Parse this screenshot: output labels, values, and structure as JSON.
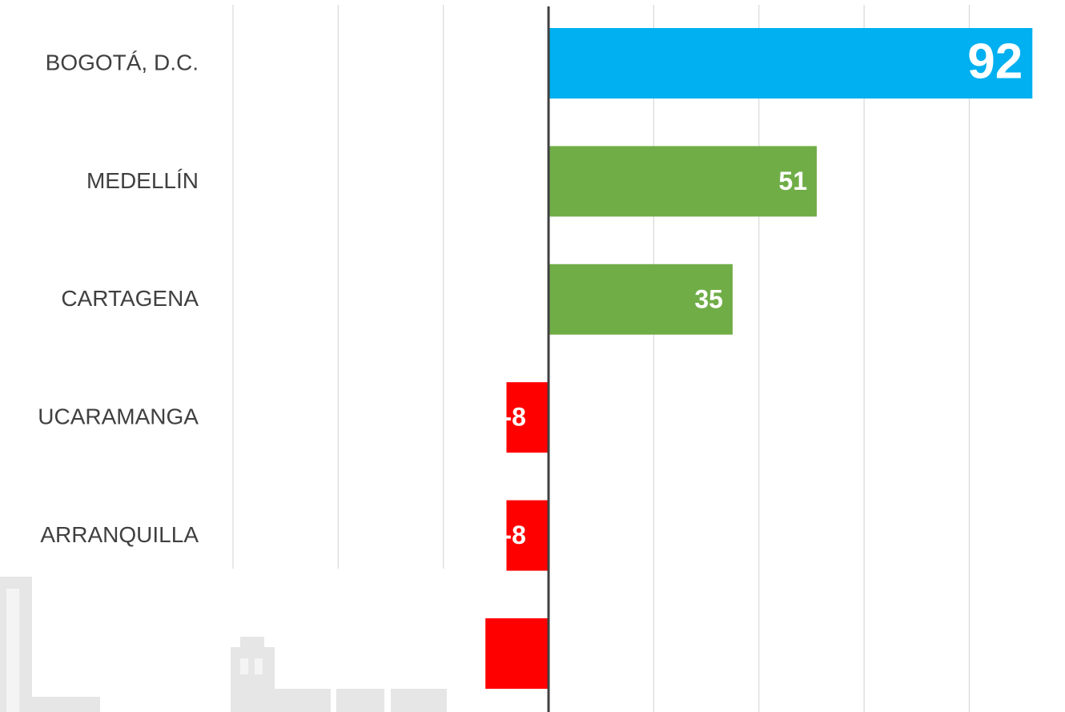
{
  "chart_data": {
    "type": "barh",
    "categories": [
      "BOGOTÁ, D.C.",
      "MEDELLÍN",
      "CARTAGENA",
      "UCARAMANGA",
      "ARRANQUILLA",
      null
    ],
    "values": [
      92,
      51,
      35,
      -8,
      -8,
      -12
    ],
    "colors": [
      "#00b0f0",
      "#70ad47",
      "#70ad47",
      "#ff0000",
      "#ff0000",
      "#ff0000"
    ],
    "data_labels": [
      true,
      true,
      true,
      true,
      true,
      false
    ],
    "xlim": [
      -104.3,
      98.2
    ],
    "xticks": [
      -60,
      -40,
      -20,
      0,
      20,
      40,
      60,
      80
    ],
    "grid": true
  }
}
